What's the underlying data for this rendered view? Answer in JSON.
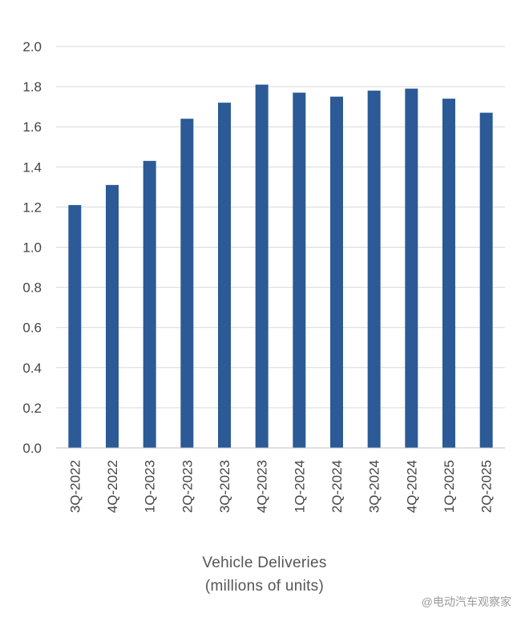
{
  "chart_data": {
    "type": "bar",
    "categories": [
      "3Q-2022",
      "4Q-2022",
      "1Q-2023",
      "2Q-2023",
      "3Q-2023",
      "4Q-2023",
      "1Q-2024",
      "2Q-2024",
      "3Q-2024",
      "4Q-2024",
      "1Q-2025",
      "2Q-2025"
    ],
    "values": [
      1.21,
      1.31,
      1.43,
      1.64,
      1.72,
      1.81,
      1.77,
      1.75,
      1.78,
      1.79,
      1.74,
      1.67
    ],
    "ylim": [
      0,
      2.0
    ],
    "yticks": [
      "0.0",
      "0.2",
      "0.4",
      "0.6",
      "0.8",
      "1.0",
      "1.2",
      "1.4",
      "1.6",
      "1.8",
      "2.0"
    ],
    "grid": true,
    "xlabel_line1": "Vehicle Deliveries",
    "xlabel_line2": "(millions of units)",
    "bar_color": "#2b5a96",
    "grid_color": "#d9d9d9"
  },
  "watermark": "@电动汽车观察家"
}
